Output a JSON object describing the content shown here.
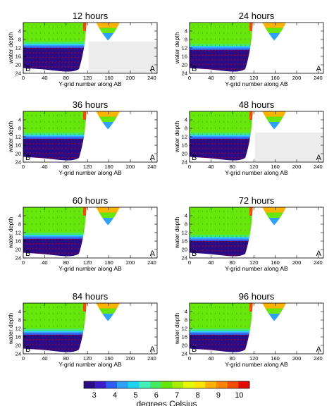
{
  "chart_data": [
    {
      "type": "heatmap",
      "title": "12 hours",
      "xlabel": "Y-grid number along AB",
      "ylabel": "water depth",
      "xlim": [
        0,
        250
      ],
      "ylim": [
        24,
        0
      ],
      "xticks": [
        "0",
        "40",
        "80",
        "120",
        "160",
        "200",
        "240"
      ],
      "yticks": [
        "4",
        "8",
        "12",
        "16",
        "20",
        "24"
      ],
      "left_label": "B",
      "right_label": "A",
      "dense_layer_depth": 12,
      "masked_region": {
        "x_start": 122,
        "depth_start": 9
      },
      "surface_temperature": 6.5,
      "bottom_temperature": 3
    },
    {
      "type": "heatmap",
      "title": "24 hours",
      "xlabel": "Y-grid number along AB",
      "ylabel": "water depth",
      "xlim": [
        0,
        250
      ],
      "ylim": [
        24,
        0
      ],
      "xticks": [
        "0",
        "40",
        "80",
        "120",
        "160",
        "200",
        "240"
      ],
      "yticks": [
        "4",
        "8",
        "12",
        "16",
        "20",
        "24"
      ],
      "left_label": "B",
      "right_label": "A",
      "dense_layer_depth": 13,
      "surface_temperature": 6.5,
      "bottom_temperature": 3
    },
    {
      "type": "heatmap",
      "title": "36 hours",
      "xlabel": "Y-grid number along AB",
      "ylabel": "water depth",
      "xlim": [
        0,
        250
      ],
      "ylim": [
        24,
        0
      ],
      "xticks": [
        "0",
        "40",
        "80",
        "120",
        "160",
        "200",
        "240"
      ],
      "yticks": [
        "4",
        "8",
        "12",
        "16",
        "20",
        "24"
      ],
      "left_label": "B",
      "right_label": "A",
      "dense_layer_depth": 13,
      "surface_temperature": 6.5,
      "bottom_temperature": 3
    },
    {
      "type": "heatmap",
      "title": "48 hours",
      "xlabel": "Y-grid number along AB",
      "ylabel": "water depth",
      "xlim": [
        0,
        250
      ],
      "ylim": [
        24,
        0
      ],
      "xticks": [
        "0",
        "40",
        "80",
        "120",
        "160",
        "200",
        "240"
      ],
      "yticks": [
        "4",
        "8",
        "12",
        "16",
        "20",
        "24"
      ],
      "left_label": "B",
      "right_label": "A",
      "dense_layer_depth": 13,
      "masked_region": {
        "x_start": 122,
        "depth_start": 10
      },
      "surface_temperature": 6.5,
      "bottom_temperature": 3
    },
    {
      "type": "heatmap",
      "title": "60 hours",
      "xlabel": "Y-grid number along AB",
      "ylabel": "water depth",
      "xlim": [
        0,
        250
      ],
      "ylim": [
        24,
        0
      ],
      "xticks": [
        "0",
        "40",
        "80",
        "120",
        "160",
        "200",
        "240"
      ],
      "yticks": [
        "4",
        "8",
        "12",
        "16",
        "20",
        "24"
      ],
      "left_label": "B",
      "right_label": "A",
      "dense_layer_depth": 15,
      "surface_temperature": 6.5,
      "bottom_temperature": 3
    },
    {
      "type": "heatmap",
      "title": "72 hours",
      "xlabel": "Y-grid number along AB",
      "ylabel": "water depth",
      "xlim": [
        0,
        250
      ],
      "ylim": [
        24,
        0
      ],
      "xticks": [
        "0",
        "40",
        "80",
        "120",
        "160",
        "200",
        "240"
      ],
      "yticks": [
        "4",
        "8",
        "12",
        "16",
        "20",
        "24"
      ],
      "left_label": "B",
      "right_label": "A",
      "dense_layer_depth": 16,
      "surface_temperature": 6.5,
      "bottom_temperature": 3
    },
    {
      "type": "heatmap",
      "title": "84 hours",
      "xlabel": "Y-grid number along AB",
      "ylabel": "water depth",
      "xlim": [
        0,
        250
      ],
      "ylim": [
        24,
        0
      ],
      "xticks": [
        "0",
        "40",
        "80",
        "120",
        "160",
        "200",
        "240"
      ],
      "yticks": [
        "4",
        "8",
        "12",
        "16",
        "20",
        "24"
      ],
      "left_label": "B",
      "right_label": "A",
      "dense_layer_depth": 15,
      "surface_temperature": 6.5,
      "bottom_temperature": 3
    },
    {
      "type": "heatmap",
      "title": "96 hours",
      "xlabel": "Y-grid number along AB",
      "ylabel": "water depth",
      "xlim": [
        0,
        250
      ],
      "ylim": [
        24,
        0
      ],
      "xticks": [
        "0",
        "40",
        "80",
        "120",
        "160",
        "200",
        "240"
      ],
      "yticks": [
        "4",
        "8",
        "12",
        "16",
        "20",
        "24"
      ],
      "left_label": "B",
      "right_label": "A",
      "dense_layer_depth": 15,
      "surface_temperature": 6.5,
      "bottom_temperature": 3
    }
  ],
  "colorbar": {
    "title": "degrees Celsius",
    "labels": [
      "3",
      "4",
      "5",
      "6",
      "7",
      "8",
      "9",
      "10"
    ],
    "min": 2.5,
    "max": 10.5,
    "colors": [
      "#2a0c86",
      "#3d1ec6",
      "#2f5cf0",
      "#2fa2f7",
      "#1fd3f3",
      "#41f0bb",
      "#45ea63",
      "#66e60a",
      "#a7ee00",
      "#e4f800",
      "#fde404",
      "#feb203",
      "#fd8304",
      "#f54b02",
      "#e60b02"
    ]
  }
}
